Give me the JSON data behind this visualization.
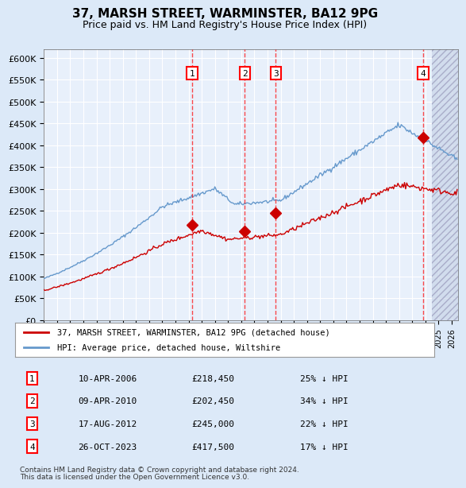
{
  "title": "37, MARSH STREET, WARMINSTER, BA12 9PG",
  "subtitle": "Price paid vs. HM Land Registry's House Price Index (HPI)",
  "footer1": "Contains HM Land Registry data © Crown copyright and database right 2024.",
  "footer2": "This data is licensed under the Open Government Licence v3.0.",
  "legend_red": "37, MARSH STREET, WARMINSTER, BA12 9PG (detached house)",
  "legend_blue": "HPI: Average price, detached house, Wiltshire",
  "transactions": [
    {
      "num": 1,
      "date": "10-APR-2006",
      "price": 218450,
      "pct": "25%",
      "year": 2006.27
    },
    {
      "num": 2,
      "date": "09-APR-2010",
      "price": 202450,
      "pct": "34%",
      "year": 2010.27
    },
    {
      "num": 3,
      "date": "17-AUG-2012",
      "price": 245000,
      "pct": "22%",
      "year": 2012.63
    },
    {
      "num": 4,
      "date": "26-OCT-2023",
      "price": 417500,
      "pct": "17%",
      "year": 2023.82
    }
  ],
  "xmin": 1995.0,
  "xmax": 2026.5,
  "ymin": 0,
  "ymax": 620000,
  "yticks": [
    0,
    50000,
    100000,
    150000,
    200000,
    250000,
    300000,
    350000,
    400000,
    450000,
    500000,
    550000,
    600000
  ],
  "bg_color": "#dce9f8",
  "plot_bg": "#e8f0fb",
  "grid_color": "#ffffff",
  "red_color": "#cc0000",
  "blue_color": "#6699cc",
  "hatch_color": "#aaaacc"
}
